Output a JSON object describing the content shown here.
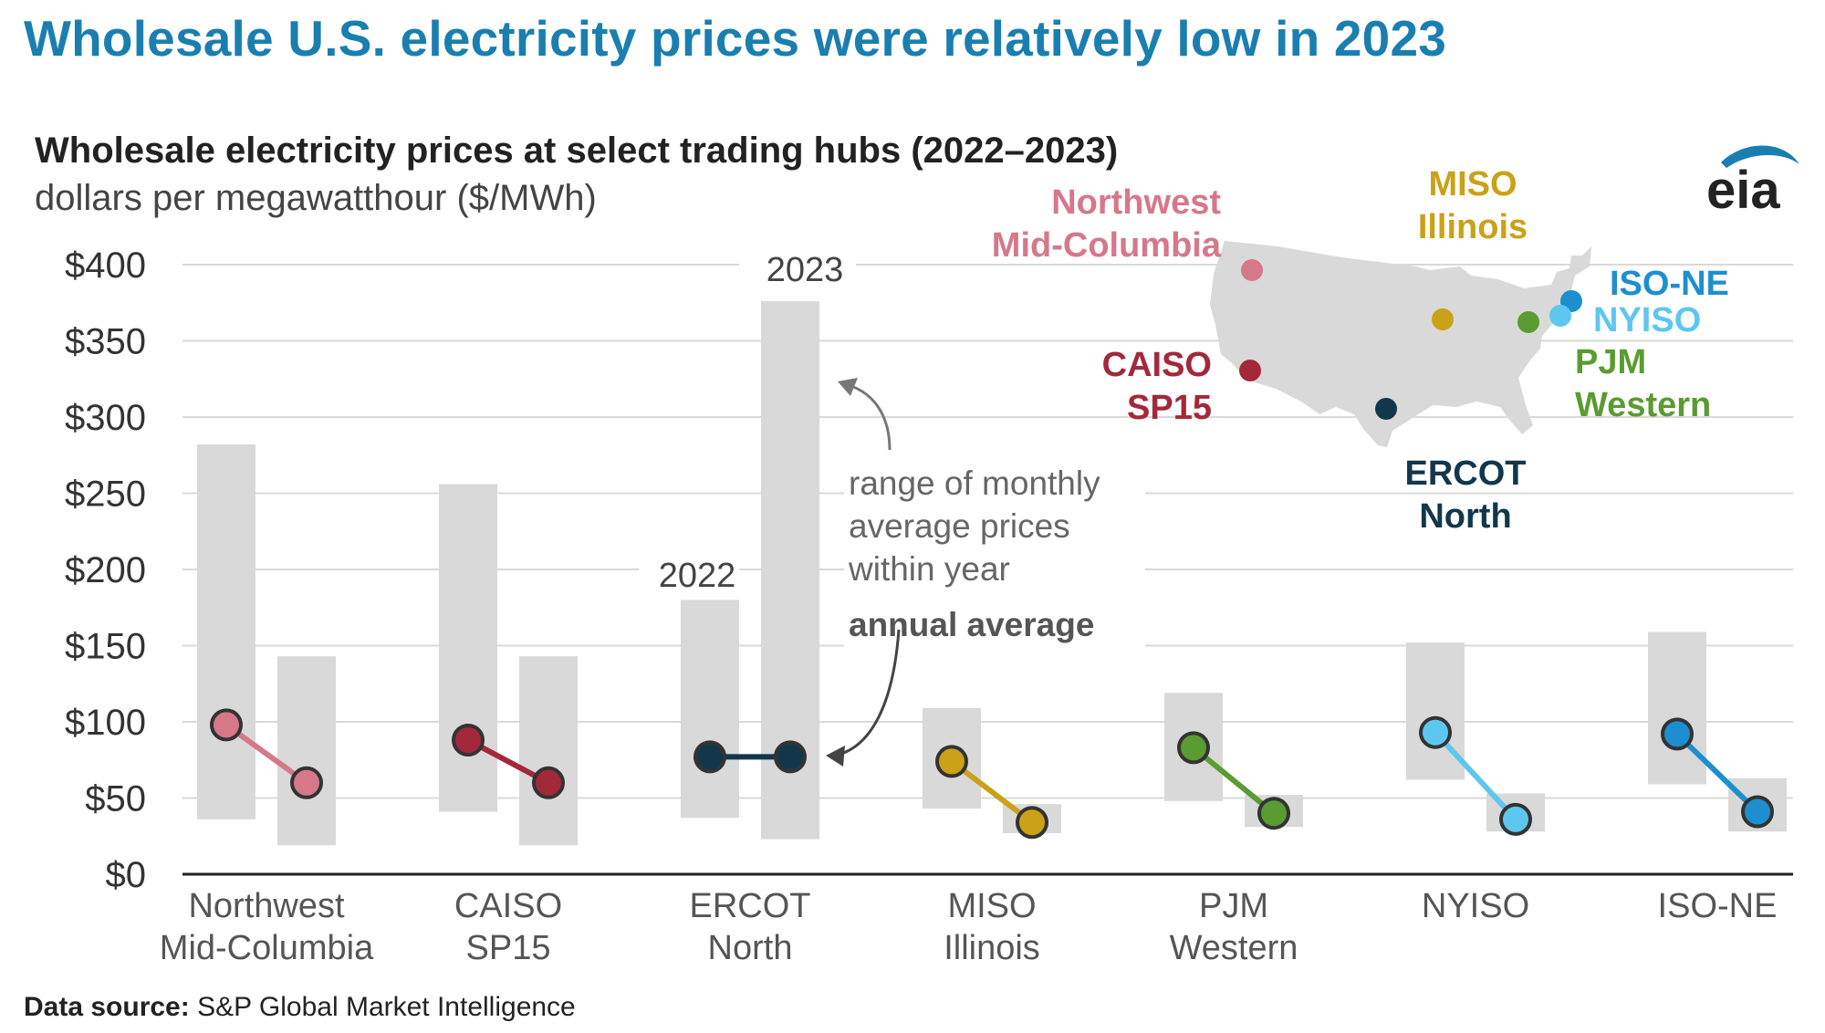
{
  "headline": "Wholesale U.S. electricity prices were relatively low in 2023",
  "logo_text": "eia",
  "source": {
    "label": "Data source:",
    "text": "S&P Global Market Intelligence"
  },
  "colors": {
    "headline": "#1a7fb0",
    "range_bar": "#d9d9d9",
    "grid": "#d9d9d9",
    "text": "#333333",
    "map": "#d9d9d9"
  },
  "chart_data": {
    "type": "dot-range",
    "title": "Wholesale electricity prices at select trading hubs (2022–2023)",
    "subtitle": "dollars per megawatthour ($/MWh)",
    "ylim": [
      0,
      400
    ],
    "y_ticks": [
      "$0",
      "$50",
      "$100",
      "$150",
      "$200",
      "$250",
      "$300",
      "$350",
      "$400"
    ],
    "grid": true,
    "years": [
      "2022",
      "2023"
    ],
    "series": [
      {
        "hub": "Northwest Mid-Columbia",
        "label_lines": [
          "Northwest",
          "Mid-Columbia"
        ],
        "color": "#d6788a",
        "range_2022": [
          36,
          282
        ],
        "range_2023": [
          19,
          143
        ],
        "avg": [
          98,
          60
        ]
      },
      {
        "hub": "CAISO SP15",
        "label_lines": [
          "CAISO",
          "SP15"
        ],
        "color": "#a3283a",
        "range_2022": [
          41,
          256
        ],
        "range_2023": [
          19,
          143
        ],
        "avg": [
          88,
          60
        ]
      },
      {
        "hub": "ERCOT North",
        "label_lines": [
          "ERCOT",
          "North"
        ],
        "color": "#12374b",
        "range_2022": [
          37,
          180
        ],
        "range_2023": [
          23,
          376
        ],
        "avg": [
          77,
          77
        ]
      },
      {
        "hub": "MISO Illinois",
        "label_lines": [
          "MISO",
          "Illinois"
        ],
        "color": "#c9a218",
        "range_2022": [
          43,
          109
        ],
        "range_2023": [
          27,
          46
        ],
        "avg": [
          74,
          34
        ]
      },
      {
        "hub": "PJM Western",
        "label_lines": [
          "PJM",
          "Western"
        ],
        "color": "#5a9b32",
        "range_2022": [
          48,
          119
        ],
        "range_2023": [
          31,
          52
        ],
        "avg": [
          83,
          40
        ]
      },
      {
        "hub": "NYISO",
        "label_lines": [
          "NYISO"
        ],
        "color": "#5ec7ef",
        "range_2022": [
          62,
          152
        ],
        "range_2023": [
          28,
          53
        ],
        "avg": [
          93,
          36
        ]
      },
      {
        "hub": "ISO-NE",
        "label_lines": [
          "ISO-NE"
        ],
        "color": "#1d8fd0",
        "range_2022": [
          59,
          159
        ],
        "range_2023": [
          28,
          63
        ],
        "avg": [
          92,
          41
        ]
      }
    ],
    "annotations": {
      "range_note": [
        "range of monthly",
        "average prices",
        "within year"
      ],
      "average_note": "annual average"
    },
    "map_legend": [
      {
        "lines": [
          "Northwest",
          "Mid-Columbia"
        ],
        "color": "#d6788a"
      },
      {
        "lines": [
          "MISO",
          "Illinois"
        ],
        "color": "#c9a218"
      },
      {
        "lines": [
          "CAISO",
          "SP15"
        ],
        "color": "#a3283a"
      },
      {
        "lines": [
          "ERCOT",
          "North"
        ],
        "color": "#12374b"
      },
      {
        "lines": [
          "ISO-NE"
        ],
        "color": "#1d8fd0"
      },
      {
        "lines": [
          "NYISO"
        ],
        "color": "#5ec7ef"
      },
      {
        "lines": [
          "PJM",
          "Western"
        ],
        "color": "#5a9b32"
      }
    ]
  }
}
